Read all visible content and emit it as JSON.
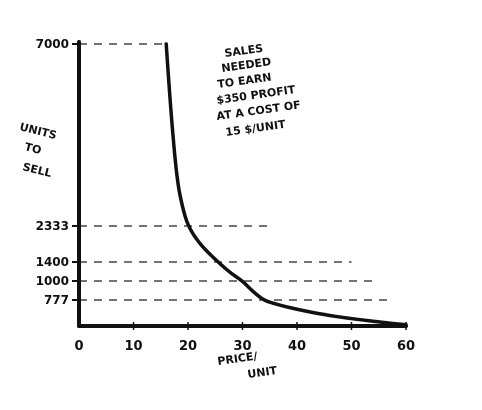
{
  "chart_data": {
    "type": "line",
    "title": "",
    "annotation": [
      "SALES",
      "NEEDED",
      "TO EARN",
      "$350 PROFIT",
      "AT A COST OF",
      "15 $/UNIT"
    ],
    "xlabel": [
      "PRICE/",
      "UNIT"
    ],
    "ylabel": [
      "UNITS",
      "TO",
      "SELL"
    ],
    "xlim": [
      0,
      60
    ],
    "x_ticks": [
      0,
      10,
      20,
      30,
      40,
      50,
      60
    ],
    "x_tick_labels": [
      "0",
      "10",
      "20",
      "30",
      "40",
      "50",
      "60"
    ],
    "y_ticks": [
      7000,
      2333,
      1400,
      1000,
      777
    ],
    "y_tick_labels": [
      "7000",
      "2333",
      "1400",
      "1000",
      "777"
    ],
    "grid": false,
    "series": [
      {
        "x": [
          16,
          17,
          18,
          19,
          20,
          22,
          24,
          26,
          28,
          30,
          32,
          34,
          36,
          38,
          40,
          42,
          44,
          46,
          48,
          50,
          52,
          54,
          56,
          58,
          60
        ],
        "y": [
          7000,
          5000,
          3500,
          2800,
          2333,
          1900,
          1600,
          1350,
          1150,
          1000,
          870,
          760,
          660,
          575,
          500,
          430,
          370,
          315,
          265,
          220,
          180,
          140,
          105,
          70,
          40
        ]
      }
    ],
    "reference_lines": [
      {
        "y": 7000,
        "x_end": 16
      },
      {
        "y": 2333,
        "x_end": 35
      },
      {
        "y": 1400,
        "x_end": 50
      },
      {
        "y": 1000,
        "x_end": 55
      },
      {
        "y": 777,
        "x_end": 57
      }
    ]
  }
}
